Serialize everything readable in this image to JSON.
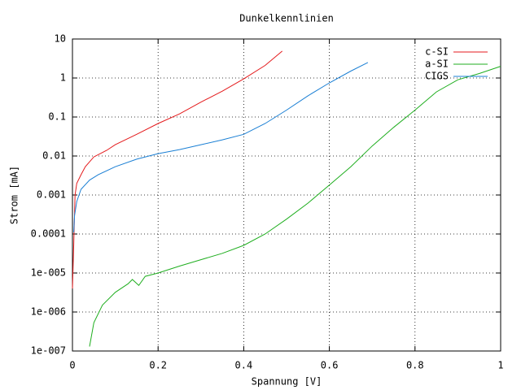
{
  "chart_data": {
    "type": "line",
    "title": "Dunkelkennlinien",
    "xlabel": "Spannung [V]",
    "ylabel": "Strom [mA]",
    "log_y": true,
    "grid": true,
    "legend": "top-right",
    "xlim": [
      0,
      1
    ],
    "xticks": [
      0,
      0.2,
      0.4,
      0.6,
      0.8,
      1
    ],
    "ylim": [
      1e-07,
      10
    ],
    "yticks": [
      {
        "value": 1e-07,
        "label": "1e-007"
      },
      {
        "value": 1e-06,
        "label": "1e-006"
      },
      {
        "value": 1e-05,
        "label": "1e-005"
      },
      0.0001,
      0.001,
      0.01,
      0.1,
      1,
      10
    ],
    "series": [
      {
        "name": "c-SI",
        "color": "#e41a1c",
        "x": [
          0,
          0.003,
          0.006,
          0.01,
          0.02,
          0.03,
          0.05,
          0.08,
          0.1,
          0.15,
          0.2,
          0.25,
          0.3,
          0.35,
          0.4,
          0.45,
          0.49
        ],
        "values": [
          4e-06,
          5.6e-05,
          0.001,
          0.002,
          0.0033,
          0.0053,
          0.0095,
          0.014,
          0.0195,
          0.036,
          0.068,
          0.12,
          0.24,
          0.46,
          0.95,
          2.1,
          4.9
        ]
      },
      {
        "name": "a-SI",
        "color": "#1fae1f",
        "x": [
          0.04,
          0.05,
          0.07,
          0.1,
          0.13,
          0.14,
          0.155,
          0.17,
          0.2,
          0.25,
          0.3,
          0.35,
          0.4,
          0.45,
          0.5,
          0.55,
          0.6,
          0.65,
          0.7,
          0.75,
          0.8,
          0.85,
          0.9,
          0.95,
          1.0
        ],
        "values": [
          1.3e-07,
          5.3e-07,
          1.5e-06,
          3.2e-06,
          5.3e-06,
          6.8e-06,
          4.8e-06,
          8.2e-06,
          1e-05,
          1.5e-05,
          2.2e-05,
          3.2e-05,
          5.1e-05,
          0.0001,
          0.00024,
          0.00062,
          0.0018,
          0.0053,
          0.018,
          0.054,
          0.15,
          0.44,
          0.9,
          1.3,
          2.0
        ]
      },
      {
        "name": "CIGS",
        "color": "#1a7fd4",
        "x": [
          0.003,
          0.005,
          0.01,
          0.02,
          0.04,
          0.06,
          0.1,
          0.15,
          0.2,
          0.25,
          0.3,
          0.35,
          0.4,
          0.45,
          0.5,
          0.55,
          0.6,
          0.65,
          0.69
        ],
        "values": [
          0.00011,
          0.0003,
          0.00068,
          0.0014,
          0.0024,
          0.0033,
          0.0053,
          0.0083,
          0.0115,
          0.0146,
          0.0195,
          0.026,
          0.036,
          0.068,
          0.15,
          0.35,
          0.75,
          1.5,
          2.5
        ]
      }
    ]
  }
}
